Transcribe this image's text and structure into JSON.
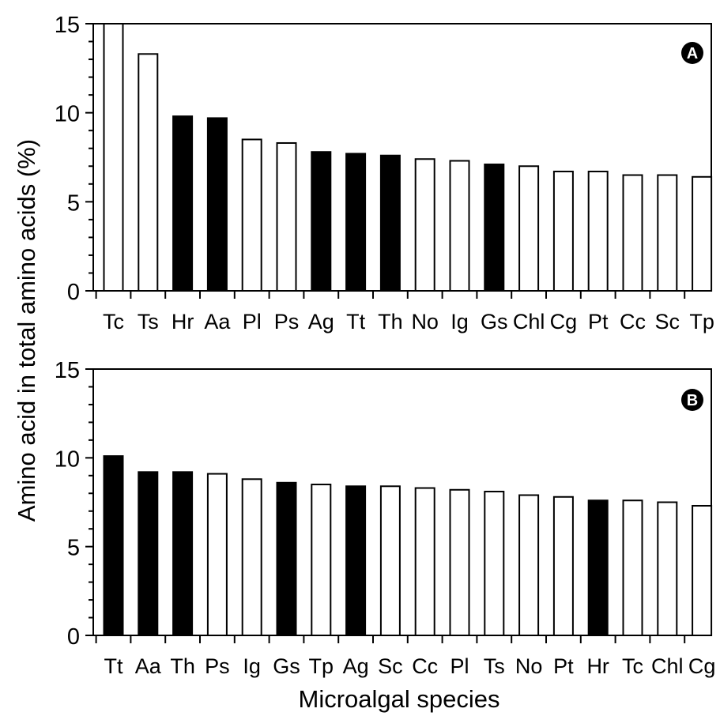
{
  "figure": {
    "ylabel": "Amino acid in total amino acids (%)",
    "xlabel": "Microalgal species",
    "colors": {
      "black": "#000000",
      "white": "#ffffff",
      "axis": "#000000"
    }
  },
  "chart_data": [
    {
      "type": "bar",
      "panel": "A",
      "ylim": [
        0,
        15
      ],
      "yticks": [
        "0",
        "5",
        "10",
        "15"
      ],
      "categories": [
        "Tc",
        "Ts",
        "Hr",
        "Aa",
        "Pl",
        "Ps",
        "Ag",
        "Tt",
        "Th",
        "No",
        "Ig",
        "Gs",
        "Chl",
        "Cg",
        "Pt",
        "Cc",
        "Sc",
        "Tp"
      ],
      "values": [
        15.0,
        13.3,
        9.8,
        9.7,
        8.5,
        8.3,
        7.8,
        7.7,
        7.6,
        7.4,
        7.3,
        7.1,
        7.0,
        6.7,
        6.7,
        6.5,
        6.5,
        6.4
      ],
      "fill": [
        "white",
        "white",
        "black",
        "black",
        "white",
        "white",
        "black",
        "black",
        "black",
        "white",
        "white",
        "black",
        "white",
        "white",
        "white",
        "white",
        "white",
        "white"
      ],
      "grid": false
    },
    {
      "type": "bar",
      "panel": "B",
      "ylim": [
        0,
        15
      ],
      "yticks": [
        "0",
        "5",
        "10",
        "15"
      ],
      "categories": [
        "Tt",
        "Aa",
        "Th",
        "Ps",
        "Ig",
        "Gs",
        "Tp",
        "Ag",
        "Sc",
        "Cc",
        "Pl",
        "Ts",
        "No",
        "Pt",
        "Hr",
        "Tc",
        "Chl",
        "Cg"
      ],
      "values": [
        10.1,
        9.2,
        9.2,
        9.1,
        8.8,
        8.6,
        8.5,
        8.4,
        8.4,
        8.3,
        8.2,
        8.1,
        7.9,
        7.8,
        7.6,
        7.6,
        7.5,
        7.3
      ],
      "fill": [
        "black",
        "black",
        "black",
        "white",
        "white",
        "black",
        "white",
        "black",
        "white",
        "white",
        "white",
        "white",
        "white",
        "white",
        "black",
        "white",
        "white",
        "white"
      ],
      "grid": false
    }
  ]
}
